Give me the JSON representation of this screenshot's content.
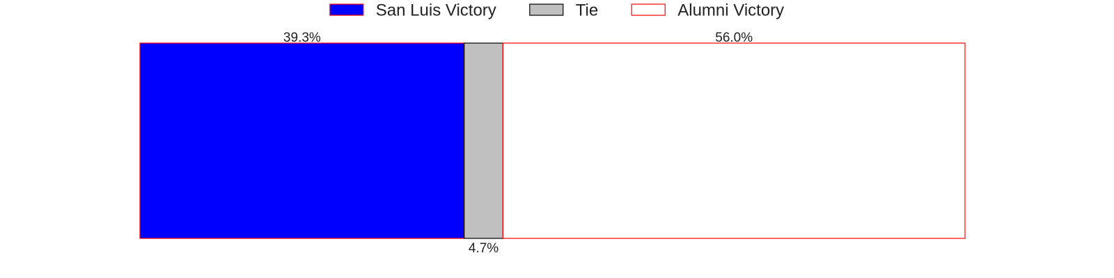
{
  "chart_data": {
    "type": "bar",
    "orientation": "horizontal",
    "stacked": true,
    "title": "",
    "xlabel": "",
    "ylabel": "",
    "xlim": [
      0,
      100
    ],
    "grid": false,
    "legend_position": "top-center",
    "series": [
      {
        "name": "San Luis Victory",
        "value": 39.3,
        "label": "39.3%",
        "fill": "#0000ff",
        "stroke": "#ff0000",
        "label_position": "above"
      },
      {
        "name": "Tie",
        "value": 4.7,
        "label": "4.7%",
        "fill": "#c0c0c0",
        "stroke": "#000000",
        "label_position": "below"
      },
      {
        "name": "Alumni Victory",
        "value": 56.0,
        "label": "56.0%",
        "fill": "#ffffff",
        "stroke": "#ff0000",
        "label_position": "above"
      }
    ]
  }
}
